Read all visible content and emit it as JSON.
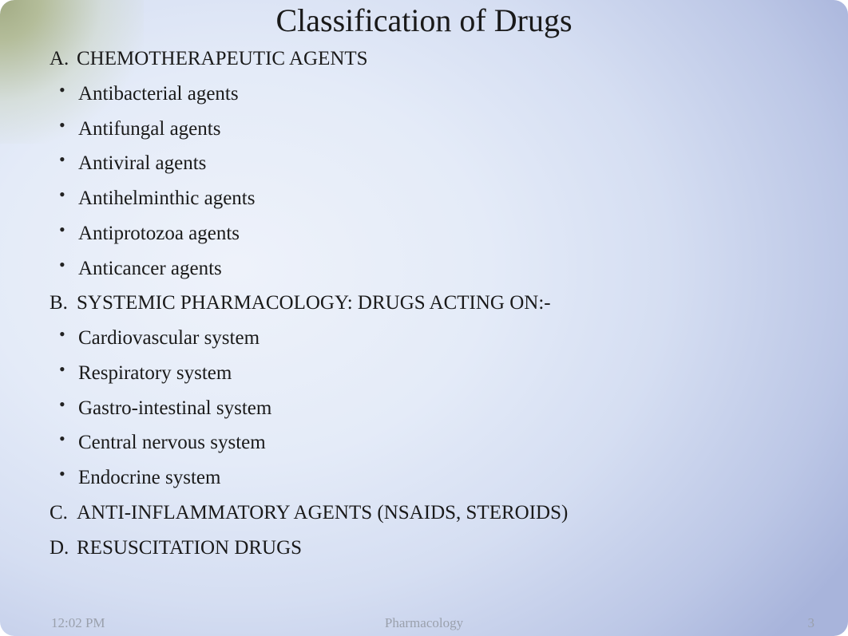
{
  "slide": {
    "title": "Classification of Drugs",
    "sections": {
      "a": {
        "letter": "A.",
        "heading": "CHEMOTHERAPEUTIC AGENTS",
        "bullets": [
          "Antibacterial agents",
          "Antifungal agents",
          "Antiviral agents",
          "Antihelminthic agents",
          "Antiprotozoa agents",
          "Anticancer agents"
        ]
      },
      "b": {
        "letter": "B.",
        "heading": "SYSTEMIC PHARMACOLOGY: DRUGS ACTING ON:-",
        "bullets": [
          "Cardiovascular system",
          "Respiratory system",
          "Gastro-intestinal system",
          "Central nervous system",
          "Endocrine system"
        ]
      },
      "c": {
        "letter": "C.",
        "heading": "ANTI-INFLAMMATORY AGENTS (NSAIDS, STEROIDS)"
      },
      "d": {
        "letter": "D.",
        "heading": "RESUSCITATION DRUGS"
      }
    },
    "footer": {
      "time": "12:02 PM",
      "center": "Pharmacology",
      "page": "3"
    },
    "colors": {
      "text": "#1a1a1a",
      "footer_text": "#9aa0ac",
      "bg_light": "#eef2fa",
      "bg_dark": "#a8b4db",
      "corner": "#a2ab84"
    },
    "typography": {
      "title_fontsize": 40,
      "body_fontsize": 25,
      "footer_fontsize": 17,
      "font_family": "Times New Roman"
    }
  }
}
